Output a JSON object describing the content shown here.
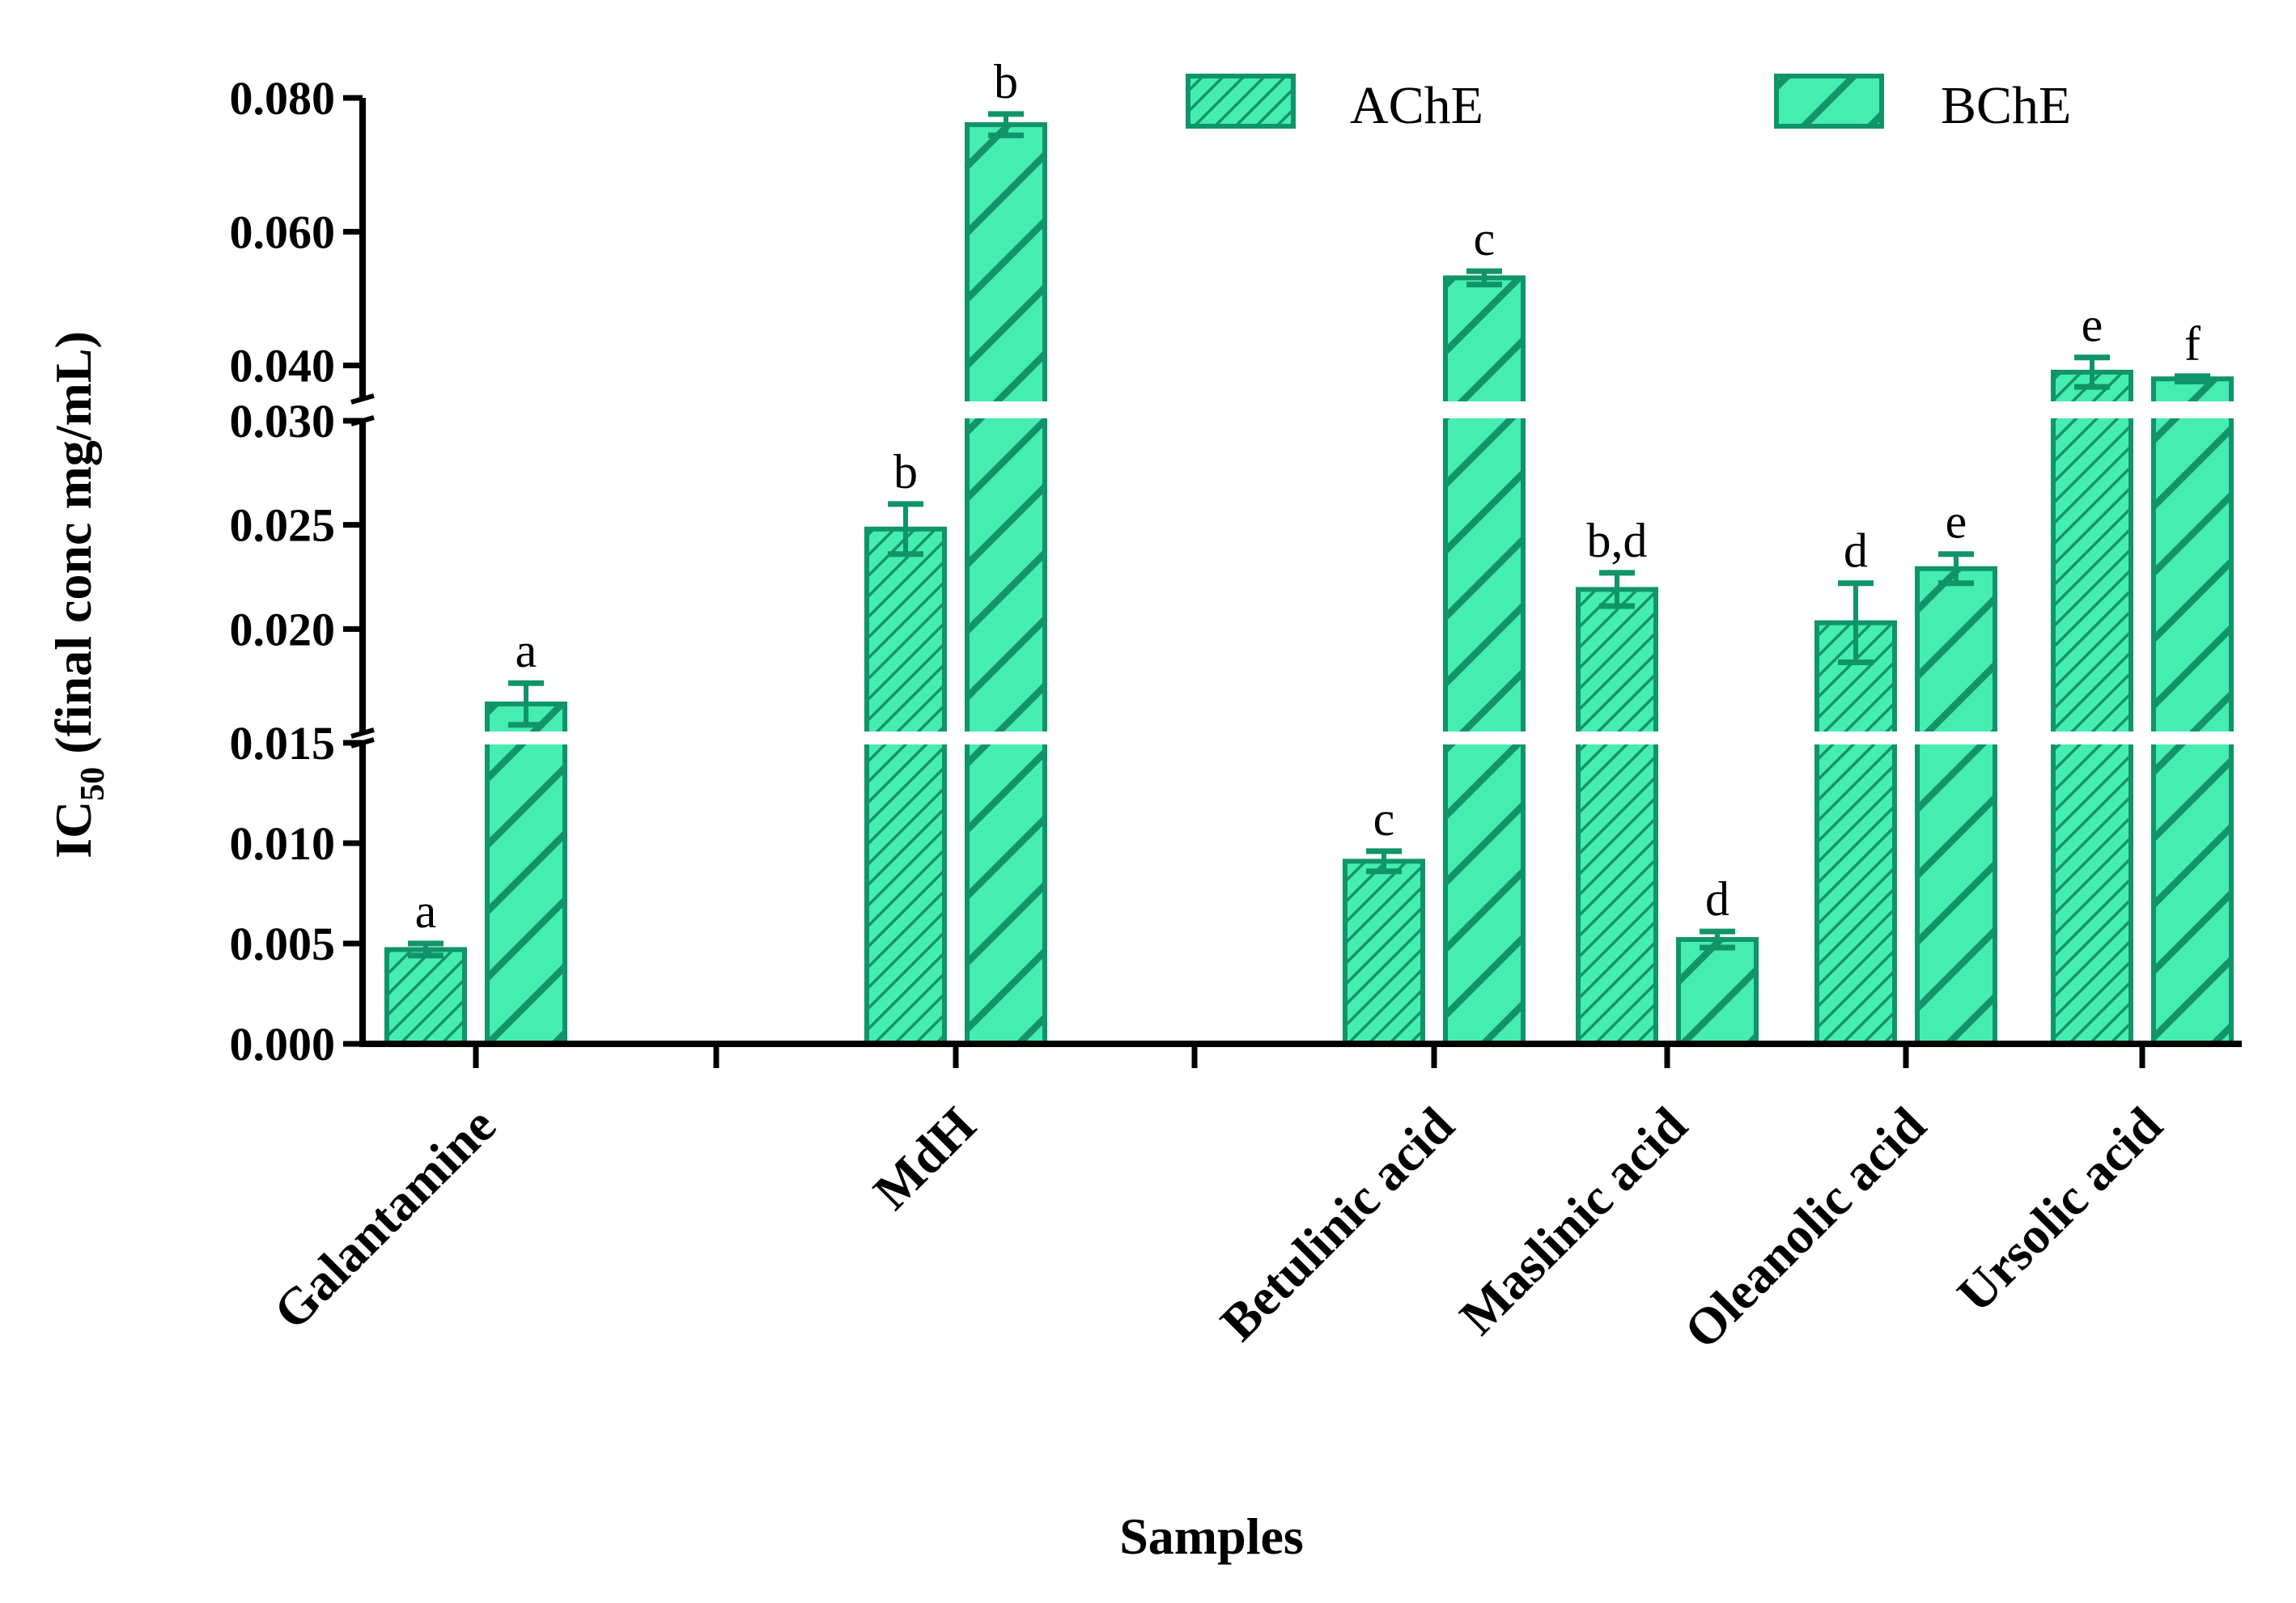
{
  "chart_data": {
    "type": "bar",
    "title": "",
    "xlabel": "Samples",
    "ylabel": {
      "prefix": "IC",
      "subscript": "50",
      "suffix": " (final conc mg/mL)"
    },
    "categories": [
      "Galantamine",
      "MdH",
      "Betulinic acid",
      "Maslinic acid",
      "Oleanolic acid",
      "Ursolic acid"
    ],
    "series": [
      {
        "name": "AChE",
        "values": [
          0.0047,
          0.0248,
          0.0091,
          0.0219,
          0.0203,
          0.039
        ],
        "errors": [
          0.0003,
          0.0012,
          0.0005,
          0.0008,
          0.0019,
          0.0022
        ],
        "letters": [
          "a",
          "b",
          "c",
          "b,d",
          "d",
          "e"
        ]
      },
      {
        "name": "BChE",
        "values": [
          0.0164,
          0.076,
          0.0531,
          0.0052,
          0.0229,
          0.038
        ],
        "errors": [
          0.001,
          0.0016,
          0.001,
          0.0004,
          0.0007,
          0.0004
        ],
        "letters": [
          "a",
          "b",
          "c",
          "d",
          "e",
          "f"
        ]
      }
    ],
    "ylim": [
      0,
      0.08
    ],
    "axis_breaks": [
      [
        0.015,
        0.015
      ],
      [
        0.03,
        0.035
      ]
    ],
    "y_ticks": [
      "0.000",
      "0.005",
      "0.010",
      "0.015",
      "0.020",
      "0.025",
      "0.030",
      "0.040",
      "0.060",
      "0.080"
    ],
    "legend_position": "top-right",
    "colors": {
      "fill": "#45edb0",
      "edge": "#10946a",
      "hatch": "#14936a",
      "axis": "#000000"
    }
  }
}
